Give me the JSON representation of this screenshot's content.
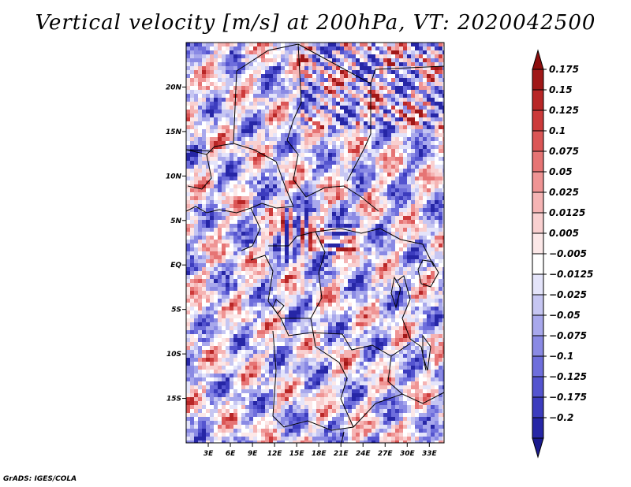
{
  "chart_data": {
    "type": "heatmap",
    "title": "Vertical velocity [m/s] at 200hPa, VT: 2020042500",
    "variable": "Vertical velocity",
    "units": "m/s",
    "level": "200hPa",
    "valid_time": "2020042500",
    "lon_range": [
      0,
      35
    ],
    "lat_range": [
      -20,
      25
    ],
    "x_ticks": [
      {
        "value": 3,
        "label": "3E"
      },
      {
        "value": 6,
        "label": "6E"
      },
      {
        "value": 9,
        "label": "9E"
      },
      {
        "value": 12,
        "label": "12E"
      },
      {
        "value": 15,
        "label": "15E"
      },
      {
        "value": 18,
        "label": "18E"
      },
      {
        "value": 21,
        "label": "21E"
      },
      {
        "value": 24,
        "label": "24E"
      },
      {
        "value": 27,
        "label": "27E"
      },
      {
        "value": 30,
        "label": "30E"
      },
      {
        "value": 33,
        "label": "33E"
      }
    ],
    "y_ticks": [
      {
        "value": 20,
        "label": "20N"
      },
      {
        "value": 15,
        "label": "15N"
      },
      {
        "value": 10,
        "label": "10N"
      },
      {
        "value": 5,
        "label": "5N"
      },
      {
        "value": 0,
        "label": "EQ"
      },
      {
        "value": -5,
        "label": "5S"
      },
      {
        "value": -10,
        "label": "10S"
      },
      {
        "value": -15,
        "label": "15S"
      }
    ],
    "colorbar": {
      "levels": [
        {
          "label": "0.175",
          "color": "#a01818"
        },
        {
          "label": "0.15",
          "color": "#b82626"
        },
        {
          "label": "0.125",
          "color": "#cc3a3a"
        },
        {
          "label": "0.1",
          "color": "#db5656"
        },
        {
          "label": "0.075",
          "color": "#e67474"
        },
        {
          "label": "0.05",
          "color": "#ef9494"
        },
        {
          "label": "0.025",
          "color": "#f5b4b4"
        },
        {
          "label": "0.0125",
          "color": "#f9d0d0"
        },
        {
          "label": "0.005",
          "color": "#fce8e8"
        },
        {
          "label": "−0.005",
          "color": "#ffffff"
        },
        {
          "label": "−0.0125",
          "color": "#e4e4fa"
        },
        {
          "label": "−0.025",
          "color": "#c6c6f2"
        },
        {
          "label": "−0.05",
          "color": "#a8a8ec"
        },
        {
          "label": "−0.075",
          "color": "#8a8ae4"
        },
        {
          "label": "−0.1",
          "color": "#6e6edc"
        },
        {
          "label": "−0.125",
          "color": "#5454cf"
        },
        {
          "label": "−0.175",
          "color": "#3c3cbe"
        },
        {
          "label": "−0.2",
          "color": "#2626a6"
        }
      ],
      "top_arrow_color": "#8c0e0e",
      "bottom_arrow_color": "#1a1a8e"
    }
  },
  "credit": "GrADS: IGES/COLA"
}
